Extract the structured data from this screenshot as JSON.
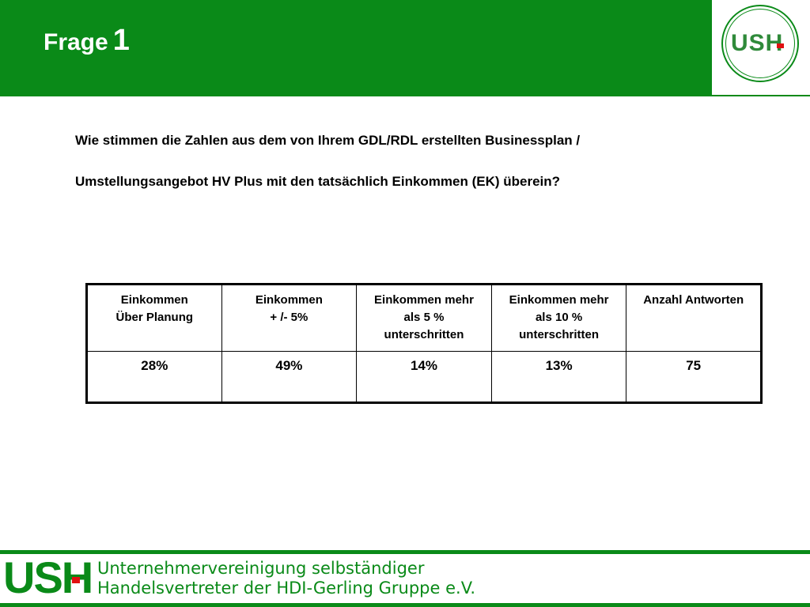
{
  "header": {
    "title_word": "Frage",
    "title_number": "1",
    "logo_text": "USH"
  },
  "question": {
    "line1": "Wie stimmen die Zahlen aus dem von Ihrem GDL/RDL erstellten Businessplan /",
    "line2": "Umstellungsangebot HV Plus mit den tatsächlich Einkommen (EK) überein?"
  },
  "table": {
    "columns": [
      {
        "line1": "Einkommen",
        "line2": "Über Planung"
      },
      {
        "line1": "Einkommen",
        "line2": "+ /- 5%"
      },
      {
        "line1": "Einkommen mehr",
        "line2": "als 5 %",
        "line3": "unterschritten"
      },
      {
        "line1": "Einkommen mehr",
        "line2": "als 10 %",
        "line3": "unterschritten"
      },
      {
        "line1": "Anzahl Antworten"
      }
    ],
    "values": [
      "28%",
      "49%",
      "14%",
      "13%",
      "75"
    ]
  },
  "footer": {
    "logo_text": "USH",
    "line1": "Unternehmervereinigung selbständiger",
    "line2": "Handelsvertreter der HDI-Gerling Gruppe e.V."
  },
  "colors": {
    "brand_green": "#0a8a18",
    "accent_red": "#e01010"
  }
}
